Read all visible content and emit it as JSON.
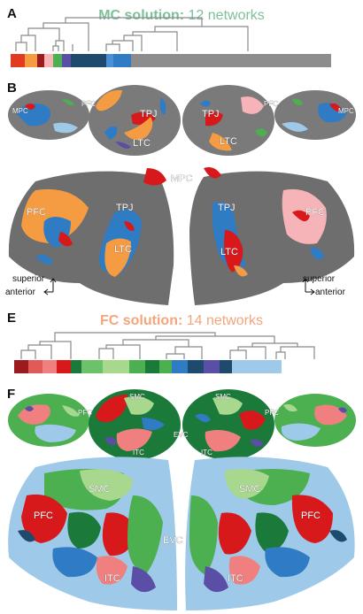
{
  "panels": {
    "A": {
      "letter": "A",
      "title_bold": "MC solution:",
      "title_rest": " 12 networks",
      "title_color": "#7fbf9a"
    },
    "B": {
      "letter": "B",
      "labels": {
        "mpc": "MPC",
        "pfc": "PFC",
        "tpj": "TPJ",
        "ltc": "LTC"
      },
      "orientation": {
        "superior": "superior",
        "anterior": "anterior"
      }
    },
    "E": {
      "letter": "E",
      "title_bold": "FC solution:",
      "title_rest": " 14 networks",
      "title_color": "#f4a57c"
    },
    "F": {
      "letter": "F",
      "labels": {
        "smc": "SMC",
        "pfc": "PFC",
        "evc": "EVC",
        "itc": "ITC"
      }
    }
  },
  "colors": {
    "cortex_dark": "#6e6e6e",
    "cortex_light": "#8d8d8d",
    "blue": "#2f7cc4",
    "navy": "#1e4a6e",
    "light_blue": "#9ec9e8",
    "red": "#d7191c",
    "dark_red": "#9b1b1e",
    "salmon": "#f08080",
    "orange": "#f59b42",
    "pink": "#f6b4b8",
    "green": "#4caf50",
    "dark_green": "#1b7a3a",
    "light_green": "#a8d88e",
    "purple": "#5a4ea6"
  },
  "colorbars": {
    "A": [
      "#e23a1f",
      "#f59b42",
      "#9b1b1e",
      "#f6b4b8",
      "#4caf50",
      "#5a4ea6",
      "#1e4a6e",
      "#1e4a6e",
      "#4a90d9",
      "#2f7cc4",
      "#8d8d8d"
    ],
    "E": [
      "#9b1b1e",
      "#e05a5a",
      "#f08080",
      "#d7191c",
      "#1b7a3a",
      "#6cc16b",
      "#a8d88e",
      "#4caf50",
      "#1b7a3a",
      "#4caf50",
      "#2f7cc4",
      "#1e4a6e",
      "#5a4ea6",
      "#1e4a6e",
      "#9ec9e8"
    ]
  }
}
